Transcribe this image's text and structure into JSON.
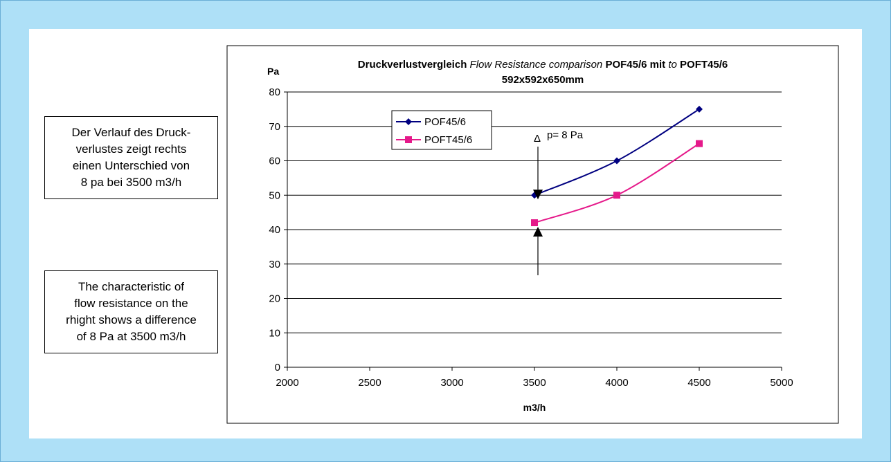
{
  "notes": {
    "de": [
      "Der Verlauf des Druck-",
      "verlustes zeigt rechts",
      "einen Unterschied von",
      "8 pa  bei 3500 m3/h"
    ],
    "en": [
      "The characteristic of",
      "flow resistance on the",
      "rhight shows a difference",
      "of  8 Pa at 3500 m3/h"
    ]
  },
  "chart_data": {
    "type": "line",
    "title_parts": [
      {
        "text": "Druckverlustvergleich ",
        "style": "bold"
      },
      {
        "text": "Flow Resistance comparison ",
        "style": "italic"
      },
      {
        "text": "POF45/6 mit ",
        "style": "bold"
      },
      {
        "text": "to ",
        "style": "italic"
      },
      {
        "text": "POFT45/6",
        "style": "bold"
      }
    ],
    "subtitle": "592x592x650mm",
    "xlabel": "m3/h",
    "ylabel": "Pa",
    "xlim": [
      2000,
      5000
    ],
    "ylim": [
      0,
      80
    ],
    "xticks": [
      2000,
      2500,
      3000,
      3500,
      4000,
      4500,
      5000
    ],
    "yticks": [
      0,
      10,
      20,
      30,
      40,
      50,
      60,
      70,
      80
    ],
    "grid": "horizontal",
    "legend_position": "top-left",
    "series": [
      {
        "name": "POF45/6",
        "x": [
          3500,
          4000,
          4500
        ],
        "y": [
          50,
          60,
          75
        ],
        "color": "#000080",
        "marker": "diamond"
      },
      {
        "name": "POFT45/6",
        "x": [
          3500,
          4000,
          4500
        ],
        "y": [
          42,
          50,
          65
        ],
        "color": "#e5198a",
        "marker": "square"
      }
    ],
    "annotation": {
      "delta_symbol": "Δ",
      "text": "p=  8 Pa",
      "x": 3500,
      "y_top": 50,
      "y_bottom": 42
    }
  }
}
